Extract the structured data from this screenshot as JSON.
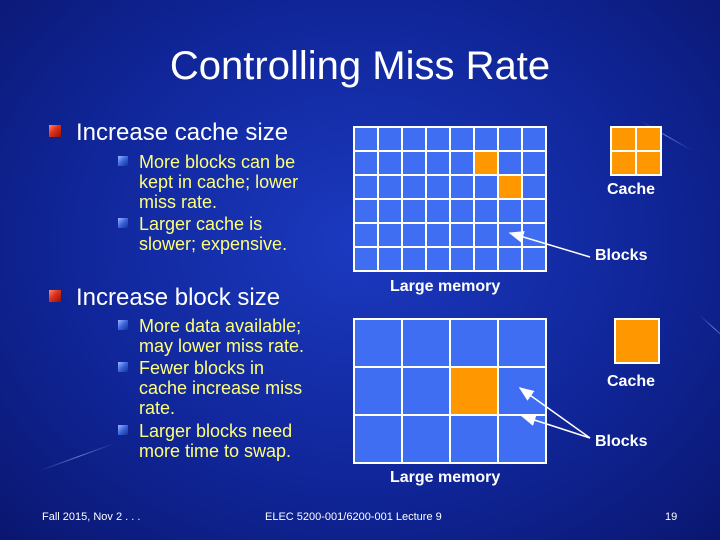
{
  "title": "Controlling Miss Rate",
  "bullets": [
    {
      "text": "Increase cache size",
      "sub": [
        {
          "lines": [
            "More blocks can be",
            "kept in cache; lower",
            "miss rate."
          ]
        },
        {
          "lines": [
            "Larger cache is",
            "slower; expensive."
          ]
        }
      ]
    },
    {
      "text": "Increase block size",
      "sub": [
        {
          "lines": [
            "More data available;",
            "may lower miss rate."
          ]
        },
        {
          "lines": [
            "Fewer blocks in",
            "cache increase miss",
            "rate."
          ]
        },
        {
          "lines": [
            "Larger blocks need",
            "more time to swap."
          ]
        }
      ]
    }
  ],
  "diagram1": {
    "cache_label": "Cache",
    "blocks_label": "Blocks",
    "memory_label": "Large memory",
    "memory_grid": {
      "rows": 6,
      "cols": 8,
      "highlighted": [
        [
          1,
          5
        ],
        [
          2,
          6
        ]
      ]
    },
    "cache_grid": {
      "rows": 2,
      "cols": 2
    }
  },
  "diagram2": {
    "cache_label": "Cache",
    "blocks_label": "Blocks",
    "memory_label": "Large memory",
    "memory_grid": {
      "rows": 3,
      "cols": 4,
      "highlighted": [
        [
          1,
          2
        ]
      ]
    },
    "cache_grid": {
      "rows": 1,
      "cols": 1
    }
  },
  "footer": {
    "left": "Fall 2015, Nov 2 . . .",
    "center": "ELEC 5200-001/6200-001 Lecture 9",
    "page": "19"
  },
  "colors": {
    "highlight": "#ff9800",
    "cell": "#3f6ef2",
    "subtext": "#ffff7a"
  }
}
